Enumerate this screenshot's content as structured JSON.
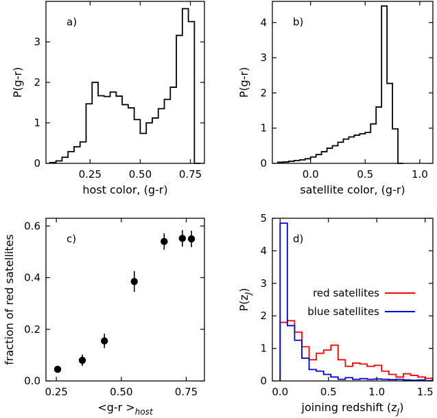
{
  "chart_data": [
    {
      "type": "histogram",
      "panel_label": "a)",
      "xlabel": "host color, (g-r)",
      "ylabel": "P(g-r)",
      "xlim": [
        0.03,
        0.82
      ],
      "ylim": [
        0,
        4.0
      ],
      "xticks": [
        0.25,
        0.5,
        0.75
      ],
      "xtick_labels": [
        "0.25",
        "0.50",
        "0.75"
      ],
      "yticks": [
        0,
        1,
        2,
        3
      ],
      "ytick_labels": [
        "0",
        "1",
        "2",
        "3"
      ],
      "bin_edges": [
        0.05,
        0.08,
        0.11,
        0.14,
        0.17,
        0.2,
        0.23,
        0.26,
        0.29,
        0.32,
        0.35,
        0.38,
        0.41,
        0.44,
        0.47,
        0.5,
        0.53,
        0.56,
        0.59,
        0.62,
        0.65,
        0.68,
        0.71,
        0.74,
        0.77,
        0.8
      ],
      "values": [
        0.02,
        0.06,
        0.15,
        0.29,
        0.41,
        0.53,
        1.47,
        2.0,
        1.67,
        1.65,
        1.76,
        1.66,
        1.45,
        1.37,
        1.08,
        0.74,
        1.0,
        1.12,
        1.35,
        1.58,
        1.88,
        3.16,
        3.82,
        3.5,
        0.0
      ]
    },
    {
      "type": "histogram",
      "panel_label": "b)",
      "xlabel": "satellite color, (g-r)",
      "ylabel": "P(g-r)",
      "xlim": [
        -0.35,
        1.12
      ],
      "ylim": [
        0,
        4.6
      ],
      "xticks": [
        0.0,
        0.5,
        1.0
      ],
      "xtick_labels": [
        "0.0",
        "0.5",
        "1.0"
      ],
      "yticks": [
        0,
        1,
        2,
        3,
        4
      ],
      "ytick_labels": [
        "0",
        "1",
        "2",
        "3",
        "4"
      ],
      "bin_edges": [
        -0.3,
        -0.25,
        -0.2,
        -0.15,
        -0.1,
        -0.05,
        0.0,
        0.05,
        0.1,
        0.15,
        0.2,
        0.25,
        0.3,
        0.35,
        0.4,
        0.45,
        0.5,
        0.55,
        0.6,
        0.65,
        0.7,
        0.75,
        0.8,
        0.85
      ],
      "values": [
        0.03,
        0.04,
        0.06,
        0.08,
        0.1,
        0.13,
        0.18,
        0.25,
        0.33,
        0.43,
        0.5,
        0.6,
        0.69,
        0.75,
        0.8,
        0.84,
        0.88,
        1.12,
        1.6,
        4.47,
        2.27,
        0.98,
        0.0
      ]
    },
    {
      "type": "scatter",
      "panel_label": "c)",
      "xlabel": "<g-r >",
      "xlabel_subscript": "host",
      "ylabel": "fraction of red satellites",
      "xlim": [
        0.21,
        0.82
      ],
      "ylim": [
        0,
        0.63
      ],
      "xticks": [
        0.25,
        0.5,
        0.75
      ],
      "xtick_labels": [
        "0.25",
        "0.50",
        "0.75"
      ],
      "yticks": [
        0.0,
        0.2,
        0.4,
        0.6
      ],
      "ytick_labels": [
        "0.0",
        "0.2",
        "0.4",
        "0.6"
      ],
      "points": [
        {
          "x": 0.255,
          "y": 0.045,
          "err": 0.012
        },
        {
          "x": 0.35,
          "y": 0.08,
          "err": 0.022
        },
        {
          "x": 0.435,
          "y": 0.155,
          "err": 0.028
        },
        {
          "x": 0.55,
          "y": 0.385,
          "err": 0.04
        },
        {
          "x": 0.665,
          "y": 0.54,
          "err": 0.032
        },
        {
          "x": 0.735,
          "y": 0.552,
          "err": 0.032
        },
        {
          "x": 0.77,
          "y": 0.55,
          "err": 0.032
        }
      ]
    },
    {
      "type": "histogram",
      "panel_label": "d)",
      "xlabel": "joining redshift (z",
      "xlabel_subscript": "J",
      "xlabel_suffix": ")",
      "ylabel": "P(z",
      "ylabel_subscript": "J",
      "ylabel_suffix": ")",
      "xlim": [
        -0.08,
        1.58
      ],
      "ylim": [
        0,
        5.0
      ],
      "xticks": [
        0.0,
        0.5,
        1.0,
        1.5
      ],
      "xtick_labels": [
        "0.0",
        "0.5",
        "1.0",
        "1.5"
      ],
      "yticks": [
        0,
        1,
        2,
        3,
        4,
        5
      ],
      "ytick_labels": [
        "0",
        "1",
        "2",
        "3",
        "4",
        "5"
      ],
      "bin_edges": [
        0.0,
        0.075,
        0.15,
        0.225,
        0.3,
        0.375,
        0.45,
        0.525,
        0.6,
        0.675,
        0.75,
        0.825,
        0.9,
        0.975,
        1.05,
        1.125,
        1.2,
        1.275,
        1.35,
        1.425,
        1.5,
        1.575
      ],
      "series": [
        {
          "name": "red satellites",
          "color": "#ff0000",
          "values": [
            1.8,
            1.85,
            1.5,
            1.05,
            0.65,
            0.85,
            0.95,
            1.1,
            0.65,
            0.45,
            0.55,
            0.52,
            0.45,
            0.48,
            0.3,
            0.2,
            0.12,
            0.22,
            0.17,
            0.12,
            0.08
          ]
        },
        {
          "name": "blue satellites",
          "color": "#0000cc",
          "values": [
            4.85,
            1.7,
            1.25,
            0.7,
            0.35,
            0.3,
            0.2,
            0.12,
            0.05,
            0.1,
            0.05,
            0.07,
            0.05,
            0.06,
            0.05,
            0.04,
            0.05,
            0.03,
            0.02,
            0.03,
            0.01
          ]
        }
      ],
      "legend_position": "center-right"
    }
  ]
}
